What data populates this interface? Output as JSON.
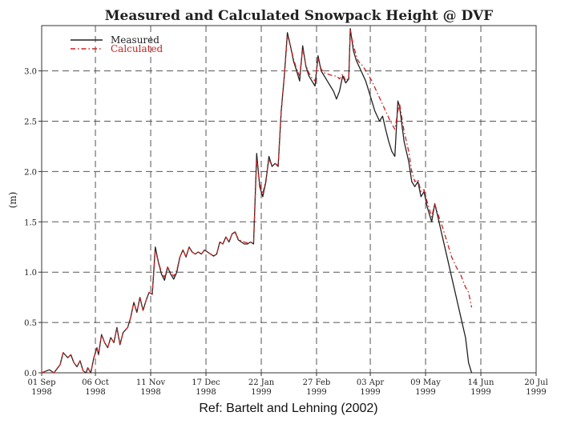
{
  "chart_data": {
    "type": "line",
    "title": "Measured and Calculated Snowpack Height @ DVF",
    "ylabel": "(m)",
    "xlabel": "",
    "ylim": [
      0,
      3.45
    ],
    "xlim": [
      0,
      322
    ],
    "y_ticks": [
      "0.0",
      "0.5",
      "1.0",
      "1.5",
      "2.0",
      "2.5",
      "3.0"
    ],
    "y_tick_values": [
      0,
      0.5,
      1.0,
      1.5,
      2.0,
      2.5,
      3.0
    ],
    "x_ticks": [
      {
        "day": 0,
        "date": "01 Sep",
        "year": "1998"
      },
      {
        "day": 35,
        "date": "06 Oct",
        "year": "1998"
      },
      {
        "day": 71,
        "date": "11 Nov",
        "year": "1998"
      },
      {
        "day": 107,
        "date": "17 Dec",
        "year": "1998"
      },
      {
        "day": 143,
        "date": "22 Jan",
        "year": "1999"
      },
      {
        "day": 179,
        "date": "27 Feb",
        "year": "1999"
      },
      {
        "day": 214,
        "date": "03 Apr",
        "year": "1999"
      },
      {
        "day": 250,
        "date": "09 May",
        "year": "1999"
      },
      {
        "day": 286,
        "date": "14 Jun",
        "year": "1999"
      },
      {
        "day": 322,
        "date": "20 Jul",
        "year": "1999"
      }
    ],
    "grid": true,
    "legend_position": "top-left",
    "series": [
      {
        "name": "Measured",
        "color": "#222222",
        "style": "solid",
        "points": [
          [
            0,
            0
          ],
          [
            5,
            0.03
          ],
          [
            8,
            0
          ],
          [
            12,
            0.08
          ],
          [
            14,
            0.2
          ],
          [
            17,
            0.15
          ],
          [
            19,
            0.18
          ],
          [
            21,
            0.1
          ],
          [
            23,
            0.06
          ],
          [
            25,
            0.12
          ],
          [
            27,
            0.02
          ],
          [
            29,
            0
          ],
          [
            30,
            0.05
          ],
          [
            32,
            0.0
          ],
          [
            34,
            0.15
          ],
          [
            36,
            0.25
          ],
          [
            37,
            0.18
          ],
          [
            39,
            0.38
          ],
          [
            41,
            0.3
          ],
          [
            43,
            0.25
          ],
          [
            45,
            0.35
          ],
          [
            47,
            0.3
          ],
          [
            49,
            0.45
          ],
          [
            51,
            0.28
          ],
          [
            53,
            0.4
          ],
          [
            56,
            0.45
          ],
          [
            58,
            0.55
          ],
          [
            60,
            0.7
          ],
          [
            62,
            0.6
          ],
          [
            64,
            0.75
          ],
          [
            66,
            0.62
          ],
          [
            68,
            0.72
          ],
          [
            70,
            0.8
          ],
          [
            72,
            0.78
          ],
          [
            74,
            1.25
          ],
          [
            76,
            1.1
          ],
          [
            78,
            0.98
          ],
          [
            80,
            0.92
          ],
          [
            82,
            1.05
          ],
          [
            84,
            0.98
          ],
          [
            86,
            0.93
          ],
          [
            88,
            1.0
          ],
          [
            90,
            1.15
          ],
          [
            92,
            1.22
          ],
          [
            94,
            1.15
          ],
          [
            96,
            1.25
          ],
          [
            98,
            1.2
          ],
          [
            100,
            1.18
          ],
          [
            102,
            1.2
          ],
          [
            104,
            1.18
          ],
          [
            106,
            1.22
          ],
          [
            108,
            1.2
          ],
          [
            110,
            1.18
          ],
          [
            112,
            1.16
          ],
          [
            114,
            1.18
          ],
          [
            116,
            1.3
          ],
          [
            118,
            1.28
          ],
          [
            120,
            1.35
          ],
          [
            122,
            1.3
          ],
          [
            124,
            1.38
          ],
          [
            126,
            1.4
          ],
          [
            128,
            1.32
          ],
          [
            130,
            1.3
          ],
          [
            132,
            1.28
          ],
          [
            134,
            1.28
          ],
          [
            136,
            1.3
          ],
          [
            138,
            1.28
          ],
          [
            140,
            2.18
          ],
          [
            142,
            1.85
          ],
          [
            144,
            1.75
          ],
          [
            146,
            1.9
          ],
          [
            148,
            2.15
          ],
          [
            150,
            2.05
          ],
          [
            152,
            2.08
          ],
          [
            154,
            2.05
          ],
          [
            156,
            2.6
          ],
          [
            158,
            2.95
          ],
          [
            160,
            3.38
          ],
          [
            162,
            3.25
          ],
          [
            164,
            3.1
          ],
          [
            166,
            3.0
          ],
          [
            168,
            2.9
          ],
          [
            170,
            3.25
          ],
          [
            172,
            3.05
          ],
          [
            174,
            2.95
          ],
          [
            176,
            2.9
          ],
          [
            178,
            2.85
          ],
          [
            180,
            3.15
          ],
          [
            182,
            3.0
          ],
          [
            184,
            2.95
          ],
          [
            186,
            2.9
          ],
          [
            188,
            2.85
          ],
          [
            190,
            2.8
          ],
          [
            192,
            2.72
          ],
          [
            194,
            2.8
          ],
          [
            196,
            2.95
          ],
          [
            198,
            2.88
          ],
          [
            200,
            2.92
          ],
          [
            201,
            3.42
          ],
          [
            203,
            3.2
          ],
          [
            205,
            3.1
          ],
          [
            208,
            3.0
          ],
          [
            211,
            2.9
          ],
          [
            214,
            2.75
          ],
          [
            217,
            2.6
          ],
          [
            220,
            2.5
          ],
          [
            222,
            2.55
          ],
          [
            224,
            2.42
          ],
          [
            226,
            2.3
          ],
          [
            228,
            2.2
          ],
          [
            230,
            2.15
          ],
          [
            232,
            2.7
          ],
          [
            233,
            2.65
          ],
          [
            236,
            2.3
          ],
          [
            239,
            2.1
          ],
          [
            241,
            1.9
          ],
          [
            243,
            1.85
          ],
          [
            245,
            1.9
          ],
          [
            247,
            1.75
          ],
          [
            249,
            1.8
          ],
          [
            251,
            1.65
          ],
          [
            254,
            1.5
          ],
          [
            256,
            1.68
          ],
          [
            258,
            1.55
          ],
          [
            261,
            1.35
          ],
          [
            264,
            1.15
          ],
          [
            267,
            0.95
          ],
          [
            270,
            0.75
          ],
          [
            273,
            0.55
          ],
          [
            276,
            0.35
          ],
          [
            278,
            0.1
          ],
          [
            280,
            0.0
          ]
        ]
      },
      {
        "name": "Calculated",
        "color": "#cc2222",
        "style": "dashdot",
        "points": [
          [
            0,
            0
          ],
          [
            5,
            0.03
          ],
          [
            8,
            0
          ],
          [
            12,
            0.08
          ],
          [
            14,
            0.2
          ],
          [
            17,
            0.15
          ],
          [
            19,
            0.18
          ],
          [
            21,
            0.1
          ],
          [
            23,
            0.06
          ],
          [
            25,
            0.12
          ],
          [
            27,
            0.02
          ],
          [
            29,
            0
          ],
          [
            30,
            0.05
          ],
          [
            32,
            0.0
          ],
          [
            34,
            0.15
          ],
          [
            36,
            0.25
          ],
          [
            37,
            0.18
          ],
          [
            39,
            0.38
          ],
          [
            41,
            0.3
          ],
          [
            43,
            0.25
          ],
          [
            45,
            0.35
          ],
          [
            47,
            0.3
          ],
          [
            49,
            0.45
          ],
          [
            51,
            0.28
          ],
          [
            53,
            0.4
          ],
          [
            56,
            0.45
          ],
          [
            58,
            0.55
          ],
          [
            60,
            0.7
          ],
          [
            62,
            0.6
          ],
          [
            64,
            0.75
          ],
          [
            66,
            0.62
          ],
          [
            68,
            0.72
          ],
          [
            70,
            0.8
          ],
          [
            72,
            0.78
          ],
          [
            74,
            1.22
          ],
          [
            76,
            1.1
          ],
          [
            78,
            1.0
          ],
          [
            80,
            0.95
          ],
          [
            82,
            1.05
          ],
          [
            84,
            1.0
          ],
          [
            86,
            0.96
          ],
          [
            88,
            1.02
          ],
          [
            90,
            1.15
          ],
          [
            92,
            1.22
          ],
          [
            94,
            1.15
          ],
          [
            96,
            1.25
          ],
          [
            98,
            1.2
          ],
          [
            100,
            1.18
          ],
          [
            102,
            1.2
          ],
          [
            104,
            1.18
          ],
          [
            106,
            1.22
          ],
          [
            108,
            1.2
          ],
          [
            110,
            1.18
          ],
          [
            112,
            1.16
          ],
          [
            114,
            1.18
          ],
          [
            116,
            1.3
          ],
          [
            118,
            1.28
          ],
          [
            120,
            1.35
          ],
          [
            122,
            1.3
          ],
          [
            124,
            1.38
          ],
          [
            126,
            1.4
          ],
          [
            128,
            1.33
          ],
          [
            130,
            1.31
          ],
          [
            132,
            1.3
          ],
          [
            134,
            1.29
          ],
          [
            136,
            1.3
          ],
          [
            138,
            1.3
          ],
          [
            140,
            2.12
          ],
          [
            142,
            1.88
          ],
          [
            144,
            1.78
          ],
          [
            146,
            1.92
          ],
          [
            148,
            2.12
          ],
          [
            150,
            2.06
          ],
          [
            152,
            2.08
          ],
          [
            154,
            2.06
          ],
          [
            156,
            2.6
          ],
          [
            158,
            2.95
          ],
          [
            160,
            3.35
          ],
          [
            162,
            3.25
          ],
          [
            164,
            3.12
          ],
          [
            166,
            3.02
          ],
          [
            168,
            2.95
          ],
          [
            170,
            3.22
          ],
          [
            172,
            3.06
          ],
          [
            174,
            2.98
          ],
          [
            176,
            2.93
          ],
          [
            178,
            2.9
          ],
          [
            180,
            3.12
          ],
          [
            182,
            3.02
          ],
          [
            184,
            2.98
          ],
          [
            186,
            2.97
          ],
          [
            188,
            2.96
          ],
          [
            190,
            2.95
          ],
          [
            192,
            2.95
          ],
          [
            194,
            2.92
          ],
          [
            196,
            2.97
          ],
          [
            198,
            2.9
          ],
          [
            200,
            2.93
          ],
          [
            201,
            3.4
          ],
          [
            203,
            3.25
          ],
          [
            206,
            3.1
          ],
          [
            209,
            3.05
          ],
          [
            212,
            2.98
          ],
          [
            215,
            2.9
          ],
          [
            218,
            2.8
          ],
          [
            221,
            2.7
          ],
          [
            224,
            2.6
          ],
          [
            227,
            2.5
          ],
          [
            230,
            2.42
          ],
          [
            232,
            2.6
          ],
          [
            233,
            2.68
          ],
          [
            236,
            2.4
          ],
          [
            239,
            2.2
          ],
          [
            241,
            2.0
          ],
          [
            243,
            1.9
          ],
          [
            245,
            1.92
          ],
          [
            247,
            1.8
          ],
          [
            249,
            1.82
          ],
          [
            251,
            1.7
          ],
          [
            254,
            1.55
          ],
          [
            256,
            1.68
          ],
          [
            258,
            1.58
          ],
          [
            261,
            1.45
          ],
          [
            264,
            1.3
          ],
          [
            267,
            1.15
          ],
          [
            270,
            1.05
          ],
          [
            273,
            0.97
          ],
          [
            276,
            0.85
          ],
          [
            278,
            0.8
          ],
          [
            280,
            0.65
          ]
        ]
      }
    ]
  },
  "caption": "Ref: Bartelt and Lehning (2002)"
}
